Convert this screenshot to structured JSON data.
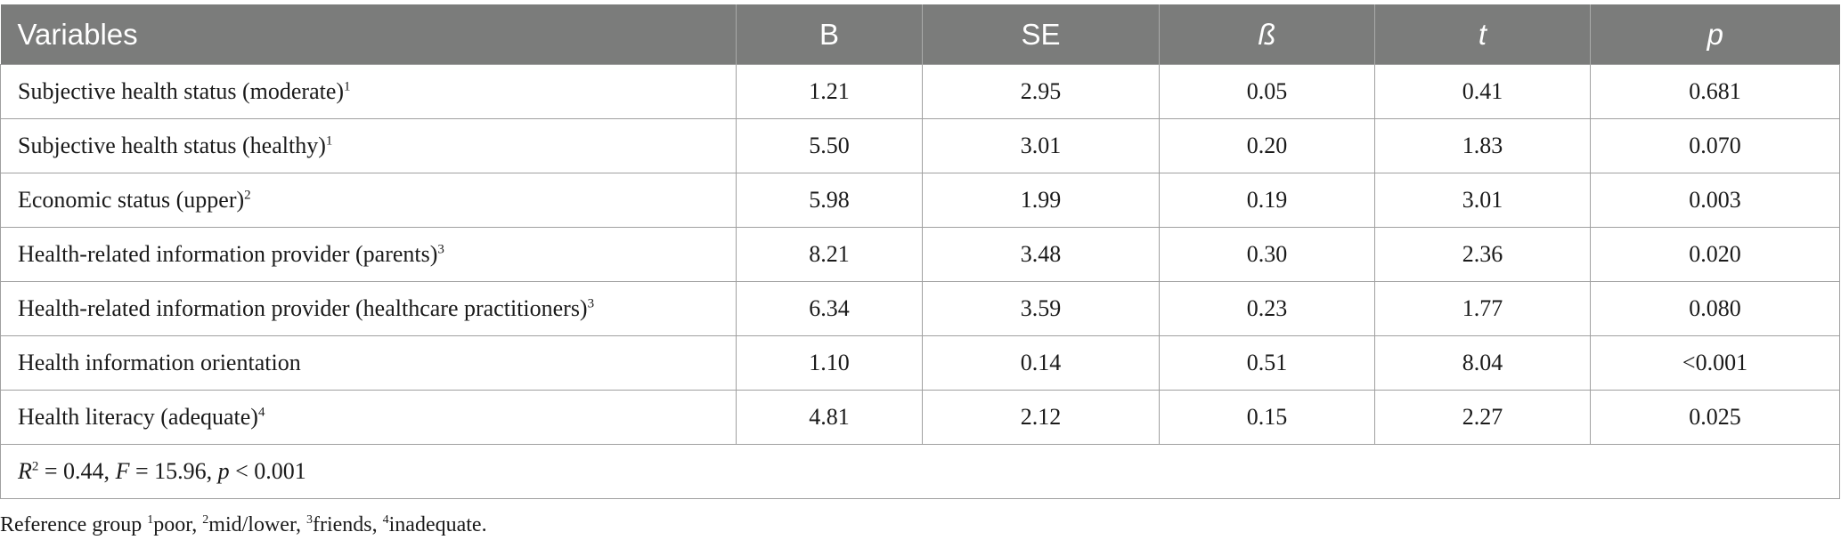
{
  "table": {
    "headers": [
      {
        "label": "Variables",
        "italic": false
      },
      {
        "label": "B",
        "italic": false
      },
      {
        "label": "SE",
        "italic": false
      },
      {
        "label": "ß",
        "italic": true
      },
      {
        "label": "t",
        "italic": true
      },
      {
        "label": "p",
        "italic": true
      }
    ],
    "rows": [
      {
        "variable": "Subjective health status (moderate)",
        "ref": "1",
        "B": "1.21",
        "SE": "2.95",
        "beta": "0.05",
        "t": "0.41",
        "p": "0.681"
      },
      {
        "variable": "Subjective health status (healthy)",
        "ref": "1",
        "B": "5.50",
        "SE": "3.01",
        "beta": "0.20",
        "t": "1.83",
        "p": "0.070"
      },
      {
        "variable": "Economic status (upper)",
        "ref": "2",
        "B": "5.98",
        "SE": "1.99",
        "beta": "0.19",
        "t": "3.01",
        "p": "0.003"
      },
      {
        "variable": "Health-related information provider (parents)",
        "ref": "3",
        "B": "8.21",
        "SE": "3.48",
        "beta": "0.30",
        "t": "2.36",
        "p": "0.020"
      },
      {
        "variable": "Health-related information provider (healthcare practitioners)",
        "ref": "3",
        "B": "6.34",
        "SE": "3.59",
        "beta": "0.23",
        "t": "1.77",
        "p": "0.080"
      },
      {
        "variable": "Health information orientation",
        "ref": "",
        "B": "1.10",
        "SE": "0.14",
        "beta": "0.51",
        "t": "8.04",
        "p": "<0.001"
      },
      {
        "variable": "Health literacy (adequate)",
        "ref": "4",
        "B": "4.81",
        "SE": "2.12",
        "beta": "0.15",
        "t": "2.27",
        "p": "0.025"
      }
    ],
    "summary": {
      "r_symbol": "R",
      "r_sup": "2",
      "r_value": " = 0.44, ",
      "f_symbol": "F",
      "f_value": " = 15.96, ",
      "p_symbol": "p",
      "p_value": " < 0.001"
    }
  },
  "footnote": {
    "prefix": "Reference group ",
    "items": [
      {
        "sup": "1",
        "text": "poor, "
      },
      {
        "sup": "2",
        "text": "mid/lower, "
      },
      {
        "sup": "3",
        "text": "friends, "
      },
      {
        "sup": "4",
        "text": "inadequate."
      }
    ]
  }
}
